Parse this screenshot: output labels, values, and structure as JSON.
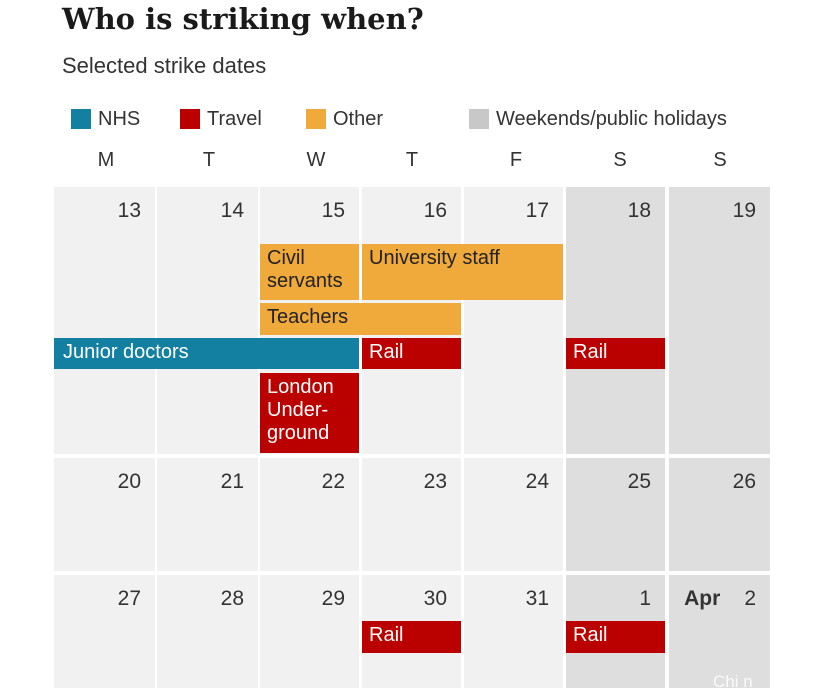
{
  "title": "Who is striking when?",
  "subtitle": "Selected strike dates",
  "colors": {
    "nhs": "#1380a1",
    "travel": "#bb0000",
    "other": "#f0a93b",
    "weekday_cell": "#f1f1f1",
    "weekend_cell": "#dedede",
    "grid_gap": "#ffffff"
  },
  "legend": [
    {
      "key": "nhs",
      "label": "NHS",
      "color": "#1380a1"
    },
    {
      "key": "travel",
      "label": "Travel",
      "color": "#bb0000"
    },
    {
      "key": "other",
      "label": "Other",
      "color": "#f0a93b"
    },
    {
      "key": "weekend",
      "label": "Weekends/public holidays",
      "color": "#c8c8c8"
    }
  ],
  "day_headers": [
    "M",
    "T",
    "W",
    "T",
    "F",
    "S",
    "S"
  ],
  "weeks": [
    {
      "days": [
        {
          "date": "13",
          "weekend": false
        },
        {
          "date": "14",
          "weekend": false
        },
        {
          "date": "15",
          "weekend": false
        },
        {
          "date": "16",
          "weekend": false
        },
        {
          "date": "17",
          "weekend": false
        },
        {
          "date": "18",
          "weekend": true
        },
        {
          "date": "19",
          "weekend": true
        }
      ]
    },
    {
      "days": [
        {
          "date": "20",
          "weekend": false
        },
        {
          "date": "21",
          "weekend": false
        },
        {
          "date": "22",
          "weekend": false
        },
        {
          "date": "23",
          "weekend": false
        },
        {
          "date": "24",
          "weekend": false
        },
        {
          "date": "25",
          "weekend": true
        },
        {
          "date": "26",
          "weekend": true
        }
      ]
    },
    {
      "days": [
        {
          "date": "27",
          "weekend": false
        },
        {
          "date": "28",
          "weekend": false
        },
        {
          "date": "29",
          "weekend": false
        },
        {
          "date": "30",
          "weekend": false
        },
        {
          "date": "31",
          "weekend": false
        },
        {
          "date": "1",
          "weekend": true
        },
        {
          "date": "2",
          "weekend": true,
          "month": "Apr"
        }
      ]
    }
  ],
  "strikes": [
    {
      "label": "Civil servants",
      "lines": [
        "Civil",
        "servants"
      ],
      "category": "other",
      "week": 0,
      "start_day": 2,
      "end_day": 2,
      "row": 0
    },
    {
      "label": "University staff",
      "category": "other",
      "week": 0,
      "start_day": 3,
      "end_day": 4,
      "row": 0
    },
    {
      "label": "Teachers",
      "category": "other",
      "week": 0,
      "start_day": 2,
      "end_day": 3,
      "row": 1
    },
    {
      "label": "Junior doctors",
      "category": "nhs",
      "week": 0,
      "start_day": 0,
      "end_day": 2,
      "row": 2
    },
    {
      "label": "Rail",
      "category": "travel",
      "week": 0,
      "start_day": 3,
      "end_day": 3,
      "row": 2
    },
    {
      "label": "Rail",
      "category": "travel",
      "week": 0,
      "start_day": 5,
      "end_day": 5,
      "row": 2
    },
    {
      "label": "London Underground",
      "lines": [
        "London",
        "Under-",
        "ground"
      ],
      "category": "travel",
      "week": 0,
      "start_day": 2,
      "end_day": 2,
      "row": 3
    },
    {
      "label": "Rail",
      "category": "travel",
      "week": 2,
      "start_day": 3,
      "end_day": 3,
      "row": 0
    },
    {
      "label": "Rail",
      "category": "travel",
      "week": 2,
      "start_day": 5,
      "end_day": 5,
      "row": 0
    }
  ],
  "watermark": "Chi n"
}
